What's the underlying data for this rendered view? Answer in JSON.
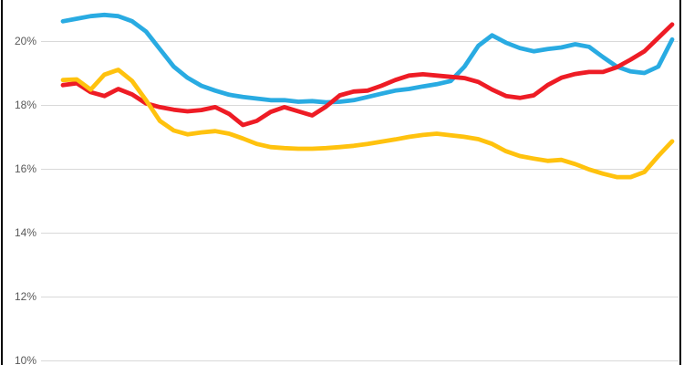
{
  "chart_data": {
    "type": "line",
    "title": "",
    "xlabel": "",
    "ylabel": "",
    "x_axis_labels_visible": false,
    "legend_visible": false,
    "grid": true,
    "ylim": [
      10,
      21
    ],
    "y_tick_step": "2%",
    "y_ticks": [
      {
        "label": "20%",
        "value": 20
      },
      {
        "label": "18%",
        "value": 18
      },
      {
        "label": "16%",
        "value": 16
      },
      {
        "label": "14%",
        "value": 14
      },
      {
        "label": "12%",
        "value": 12
      },
      {
        "label": "10%",
        "value": 10
      }
    ],
    "unit": "percent",
    "colors": {
      "blue_line": "#29ABE2",
      "red_line": "#EE1C25",
      "yellow_line": "#FFC20E",
      "gridline": "#D9D9D9",
      "tick_text": "#595959",
      "edge_border": "#000000",
      "background": "#FFFFFF"
    },
    "series": [
      {
        "name": "blue-series",
        "color": "#29ABE2",
        "values": [
          20.62,
          20.7,
          20.78,
          20.82,
          20.78,
          20.62,
          20.3,
          19.75,
          19.2,
          18.85,
          18.6,
          18.45,
          18.32,
          18.25,
          18.2,
          18.15,
          18.15,
          18.1,
          18.12,
          18.08,
          18.1,
          18.15,
          18.25,
          18.35,
          18.45,
          18.5,
          18.58,
          18.65,
          18.75,
          19.2,
          19.85,
          20.18,
          19.95,
          19.78,
          19.68,
          19.75,
          19.8,
          19.9,
          19.82,
          19.5,
          19.2,
          19.05,
          19.0,
          19.2,
          20.05
        ]
      },
      {
        "name": "red-series",
        "color": "#EE1C25",
        "values": [
          18.62,
          18.68,
          18.4,
          18.28,
          18.5,
          18.33,
          18.05,
          17.93,
          17.85,
          17.8,
          17.84,
          17.93,
          17.72,
          17.37,
          17.5,
          17.78,
          17.93,
          17.8,
          17.67,
          17.95,
          18.3,
          18.42,
          18.45,
          18.6,
          18.78,
          18.92,
          18.96,
          18.92,
          18.88,
          18.84,
          18.72,
          18.48,
          18.28,
          18.22,
          18.3,
          18.62,
          18.85,
          18.97,
          19.03,
          19.03,
          19.18,
          19.42,
          19.68,
          20.1,
          20.52
        ]
      },
      {
        "name": "yellow-series",
        "color": "#FFC20E",
        "values": [
          18.78,
          18.8,
          18.48,
          18.95,
          19.1,
          18.75,
          18.15,
          17.5,
          17.2,
          17.08,
          17.14,
          17.18,
          17.1,
          16.95,
          16.78,
          16.68,
          16.65,
          16.63,
          16.63,
          16.65,
          16.68,
          16.72,
          16.78,
          16.85,
          16.92,
          17.0,
          17.06,
          17.1,
          17.05,
          17.0,
          16.93,
          16.78,
          16.55,
          16.4,
          16.32,
          16.25,
          16.28,
          16.15,
          15.98,
          15.85,
          15.74,
          15.74,
          15.9,
          16.4,
          16.86
        ]
      }
    ]
  }
}
